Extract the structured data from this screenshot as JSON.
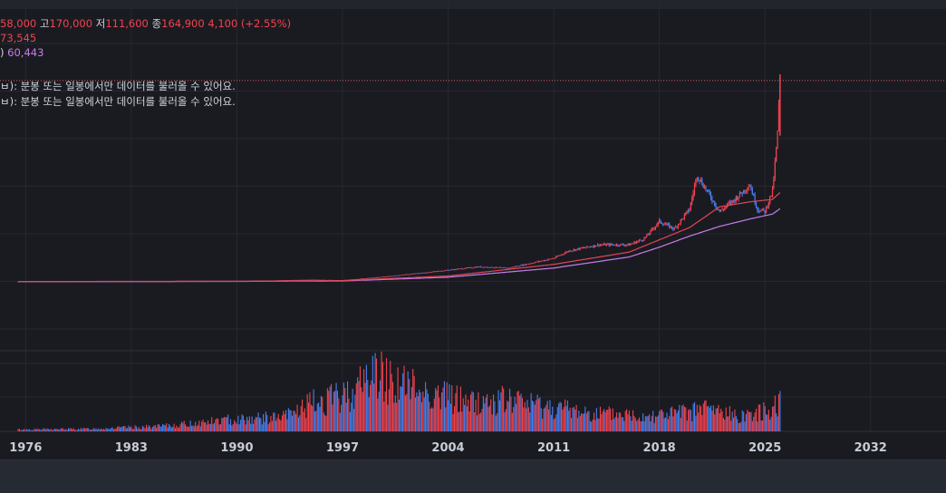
{
  "legend": {
    "open_label": "",
    "open_value": "58,000",
    "high_label": "고",
    "high_value": "170,000",
    "low_label": "저",
    "low_value": "111,600",
    "close_label": "종",
    "close_value": "164,900",
    "change": "4,100 (+2.55%)",
    "ma1_prefix": "",
    "ma1_value": "73,545",
    "ma2_prefix": ")",
    "ma2_value": "60,443"
  },
  "notes": [
    "ㅂ): 분봉 또는 일봉에서만 데이터를 불러올 수 있어요.",
    "ㅂ): 분봉 또는 일봉에서만 데이터를 불러올 수 있어요."
  ],
  "colors": {
    "up": "#f0434f",
    "down": "#4a7ff0",
    "ma_short": "#e0455a",
    "ma_long": "#c77dea",
    "grid": "#262830",
    "price_line": "#e0606a"
  },
  "chart_data": {
    "type": "candlestick-with-volume",
    "x_ticks": [
      "1976",
      "1983",
      "1990",
      "1997",
      "2004",
      "2011",
      "2018",
      "2025",
      "2032"
    ],
    "x_range": [
      1974.3,
      2037.0
    ],
    "current_price_line": 164900,
    "price_series": [
      [
        1975.5,
        1000
      ],
      [
        1983,
        1100
      ],
      [
        1990,
        1300
      ],
      [
        1995,
        2500
      ],
      [
        1997,
        2000
      ],
      [
        2000,
        5200
      ],
      [
        2003,
        9000
      ],
      [
        2006,
        13000
      ],
      [
        2008,
        12000
      ],
      [
        2011,
        20000
      ],
      [
        2012,
        26000
      ],
      [
        2014,
        31000
      ],
      [
        2016,
        31000
      ],
      [
        2017,
        36000
      ],
      [
        2018,
        50000
      ],
      [
        2019,
        44000
      ],
      [
        2020,
        60000
      ],
      [
        2020.5,
        88000
      ],
      [
        2021,
        78000
      ],
      [
        2022,
        58000
      ],
      [
        2023,
        68000
      ],
      [
        2024,
        80000
      ],
      [
        2024.5,
        60000
      ],
      [
        2025,
        58000
      ],
      [
        2025.5,
        75000
      ],
      [
        2025.8,
        115000
      ],
      [
        2026,
        164900
      ]
    ],
    "ma_short_series": [
      [
        1975.5,
        1000
      ],
      [
        1990,
        1200
      ],
      [
        1997,
        1800
      ],
      [
        2004,
        5500
      ],
      [
        2011,
        15000
      ],
      [
        2016,
        25000
      ],
      [
        2018,
        35000
      ],
      [
        2020,
        45000
      ],
      [
        2022,
        62000
      ],
      [
        2024,
        66000
      ],
      [
        2025.5,
        68000
      ],
      [
        2026,
        73545
      ]
    ],
    "ma_long_series": [
      [
        1975.5,
        1000
      ],
      [
        1990,
        1100
      ],
      [
        1997,
        1500
      ],
      [
        2004,
        4500
      ],
      [
        2011,
        12000
      ],
      [
        2016,
        21000
      ],
      [
        2018,
        29000
      ],
      [
        2020,
        38000
      ],
      [
        2022,
        46000
      ],
      [
        2024,
        52000
      ],
      [
        2025.5,
        56000
      ],
      [
        2026,
        60443
      ]
    ],
    "volume_series": [
      [
        1975.5,
        3
      ],
      [
        1980,
        4
      ],
      [
        1985,
        8
      ],
      [
        1988,
        15
      ],
      [
        1990,
        20
      ],
      [
        1993,
        22
      ],
      [
        1995,
        45
      ],
      [
        1997,
        55
      ],
      [
        1998,
        70
      ],
      [
        1999,
        95
      ],
      [
        2000,
        85
      ],
      [
        2001,
        75
      ],
      [
        2003,
        60
      ],
      [
        2006,
        45
      ],
      [
        2008,
        50
      ],
      [
        2011,
        38
      ],
      [
        2014,
        28
      ],
      [
        2017,
        26
      ],
      [
        2020,
        30
      ],
      [
        2021,
        38
      ],
      [
        2023,
        25
      ],
      [
        2025,
        32
      ],
      [
        2026,
        50
      ]
    ]
  }
}
